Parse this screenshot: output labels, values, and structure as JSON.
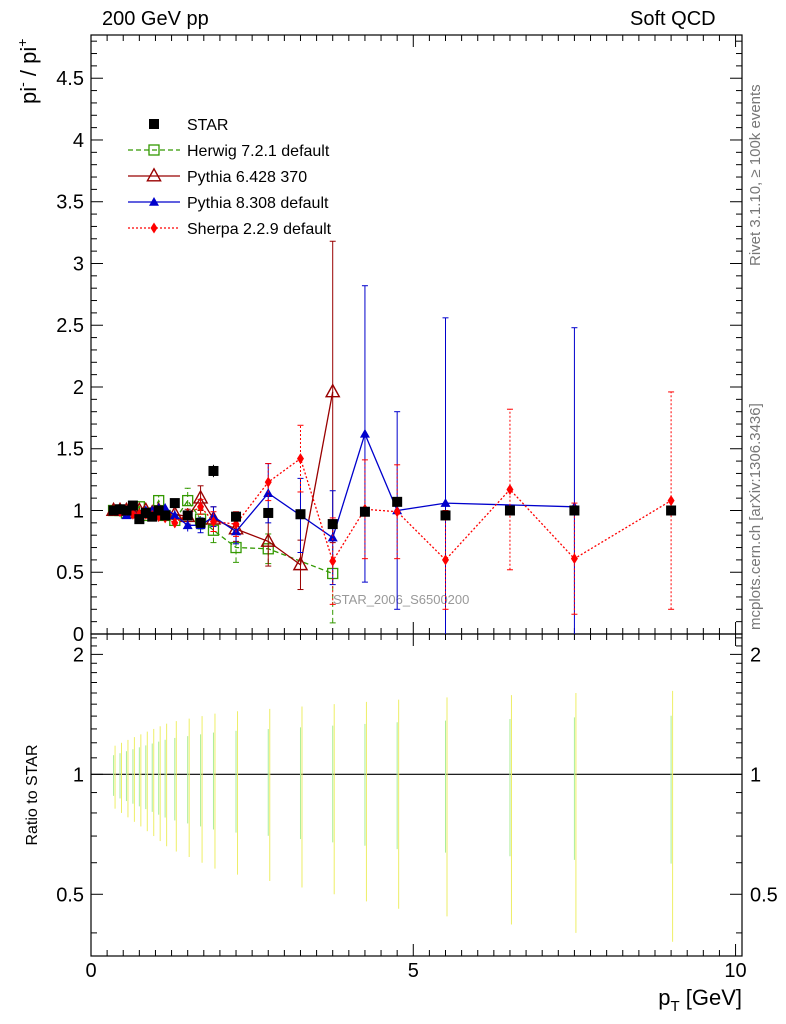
{
  "header": {
    "left": "200 GeV pp",
    "right": "Soft QCD"
  },
  "side_labels": {
    "rivet": "Rivet 3.1.10, ≥ 100k events",
    "mcplots": "mcplots.cern.ch [arXiv:1306.3436]"
  },
  "chart_data": {
    "type": "scatter",
    "main": {
      "ylabel": "pi- / pi+",
      "ylim": [
        0,
        4.85
      ],
      "yticks": [
        "0",
        "0.5",
        "1",
        "1.5",
        "2",
        "2.5",
        "3",
        "3.5",
        "4",
        "4.5"
      ],
      "watermark": "STAR_2006_S6500200"
    },
    "ratio": {
      "ylabel": "Ratio to STAR",
      "ylim": [
        0.35,
        2.25
      ],
      "yticks": [
        "0.5",
        "1",
        "2"
      ]
    },
    "xlabel": "p_T [GeV]",
    "xlim": [
      0,
      10.1
    ],
    "xticks": [
      "0",
      "5",
      "10"
    ],
    "legend_position": "top-left",
    "series": [
      {
        "name": "STAR",
        "color": "#000000",
        "marker": "square-filled",
        "line": "none",
        "points": [
          [
            0.35,
            1.0
          ],
          [
            0.45,
            1.01
          ],
          [
            0.55,
            1.0
          ],
          [
            0.65,
            1.04
          ],
          [
            0.75,
            0.93
          ],
          [
            0.85,
            0.98
          ],
          [
            0.95,
            0.95
          ],
          [
            1.05,
            1.0
          ],
          [
            1.15,
            0.96
          ],
          [
            1.3,
            1.06
          ],
          [
            1.5,
            0.96
          ],
          [
            1.7,
            0.9
          ],
          [
            1.9,
            1.32
          ],
          [
            2.25,
            0.95
          ],
          [
            2.75,
            0.98
          ],
          [
            3.25,
            0.97
          ],
          [
            3.75,
            0.89
          ],
          [
            4.25,
            0.99
          ],
          [
            4.75,
            1.07
          ],
          [
            5.5,
            0.96
          ],
          [
            6.5,
            1.0
          ],
          [
            7.5,
            1.0
          ],
          [
            9.0,
            1.0
          ]
        ],
        "errors": [
          0.01,
          0.01,
          0.01,
          0.01,
          0.01,
          0.01,
          0.01,
          0.01,
          0.01,
          0.02,
          0.02,
          0.03,
          0.05,
          0.03,
          0.03,
          0.03,
          0.03,
          0.03,
          0.03,
          0.03,
          0.03,
          0.03,
          0.03
        ]
      },
      {
        "name": "Herwig 7.2.1 default",
        "color": "#339900",
        "marker": "square-open",
        "line": "dashed",
        "points": [
          [
            0.35,
            1.0
          ],
          [
            0.45,
            1.0
          ],
          [
            0.55,
            0.98
          ],
          [
            0.65,
            1.0
          ],
          [
            0.75,
            1.03
          ],
          [
            0.85,
            0.96
          ],
          [
            0.95,
            0.98
          ],
          [
            1.05,
            1.08
          ],
          [
            1.15,
            0.96
          ],
          [
            1.3,
            0.92
          ],
          [
            1.5,
            1.08
          ],
          [
            1.7,
            0.93
          ],
          [
            1.9,
            0.84
          ],
          [
            2.25,
            0.7
          ],
          [
            2.75,
            0.69
          ],
          [
            3.25,
            null
          ],
          [
            3.75,
            0.49
          ]
        ],
        "errors": [
          0.02,
          0.02,
          0.02,
          0.02,
          0.03,
          0.03,
          0.03,
          0.04,
          0.04,
          0.05,
          0.1,
          0.08,
          0.1,
          0.12,
          0.12,
          null,
          0.4
        ]
      },
      {
        "name": "Pythia 6.428 370",
        "color": "#990000",
        "marker": "triangle-open",
        "line": "solid",
        "points": [
          [
            0.35,
            1.0
          ],
          [
            0.45,
            1.0
          ],
          [
            0.55,
            1.0
          ],
          [
            0.65,
            0.98
          ],
          [
            0.75,
            1.0
          ],
          [
            0.85,
            1.0
          ],
          [
            0.95,
            0.98
          ],
          [
            1.05,
            1.0
          ],
          [
            1.15,
            0.98
          ],
          [
            1.3,
            0.97
          ],
          [
            1.5,
            0.95
          ],
          [
            1.7,
            1.1
          ],
          [
            1.9,
            0.93
          ],
          [
            2.25,
            0.85
          ],
          [
            2.75,
            0.75
          ],
          [
            3.25,
            0.56
          ],
          [
            3.75,
            1.96
          ]
        ],
        "errors": [
          0.02,
          0.02,
          0.02,
          0.02,
          0.02,
          0.03,
          0.03,
          0.03,
          0.03,
          0.04,
          0.06,
          0.1,
          0.1,
          0.1,
          0.2,
          0.2,
          1.22
        ]
      },
      {
        "name": "Pythia 8.308 default",
        "color": "#0000cc",
        "marker": "triangle-filled",
        "line": "solid",
        "points": [
          [
            0.35,
            1.0
          ],
          [
            0.45,
            0.99
          ],
          [
            0.55,
            0.96
          ],
          [
            0.65,
            0.98
          ],
          [
            0.75,
            0.97
          ],
          [
            0.85,
            1.0
          ],
          [
            0.95,
            1.0
          ],
          [
            1.05,
            1.02
          ],
          [
            1.15,
            1.02
          ],
          [
            1.3,
            0.96
          ],
          [
            1.5,
            0.88
          ],
          [
            1.7,
            0.88
          ],
          [
            1.9,
            0.95
          ],
          [
            2.25,
            0.83
          ],
          [
            2.75,
            1.14
          ],
          [
            3.25,
            0.96
          ],
          [
            3.75,
            0.78
          ],
          [
            4.25,
            1.62
          ],
          [
            4.75,
            1.0
          ],
          [
            5.5,
            1.06
          ],
          [
            7.5,
            1.03
          ]
        ],
        "errors": [
          0.02,
          0.02,
          0.02,
          0.02,
          0.02,
          0.03,
          0.03,
          0.03,
          0.03,
          0.04,
          0.05,
          0.06,
          0.08,
          0.1,
          0.24,
          0.3,
          0.38,
          1.2,
          0.8,
          1.5,
          1.45
        ]
      },
      {
        "name": "Sherpa 2.2.9 default",
        "color": "#ff0000",
        "marker": "diamond-filled",
        "line": "dotted",
        "points": [
          [
            0.35,
            1.0
          ],
          [
            0.45,
            0.99
          ],
          [
            0.55,
            1.0
          ],
          [
            0.65,
            0.97
          ],
          [
            0.75,
            0.97
          ],
          [
            0.85,
            0.97
          ],
          [
            0.95,
            0.96
          ],
          [
            1.05,
            0.95
          ],
          [
            1.15,
            0.94
          ],
          [
            1.3,
            0.9
          ],
          [
            1.5,
            0.97
          ],
          [
            1.7,
            1.03
          ],
          [
            1.9,
            0.91
          ],
          [
            2.25,
            0.89
          ],
          [
            2.75,
            1.23
          ],
          [
            3.25,
            1.42
          ],
          [
            3.75,
            0.59
          ],
          [
            4.25,
            1.01
          ],
          [
            4.75,
            0.99
          ],
          [
            5.5,
            0.6
          ],
          [
            6.5,
            1.17
          ],
          [
            7.5,
            0.61
          ],
          [
            9.0,
            1.08
          ]
        ],
        "errors": [
          0.02,
          0.02,
          0.02,
          0.02,
          0.02,
          0.03,
          0.03,
          0.03,
          0.03,
          0.04,
          0.05,
          0.06,
          0.08,
          0.1,
          0.15,
          0.27,
          0.35,
          0.4,
          0.38,
          0.4,
          0.65,
          0.45,
          0.88
        ]
      }
    ]
  }
}
